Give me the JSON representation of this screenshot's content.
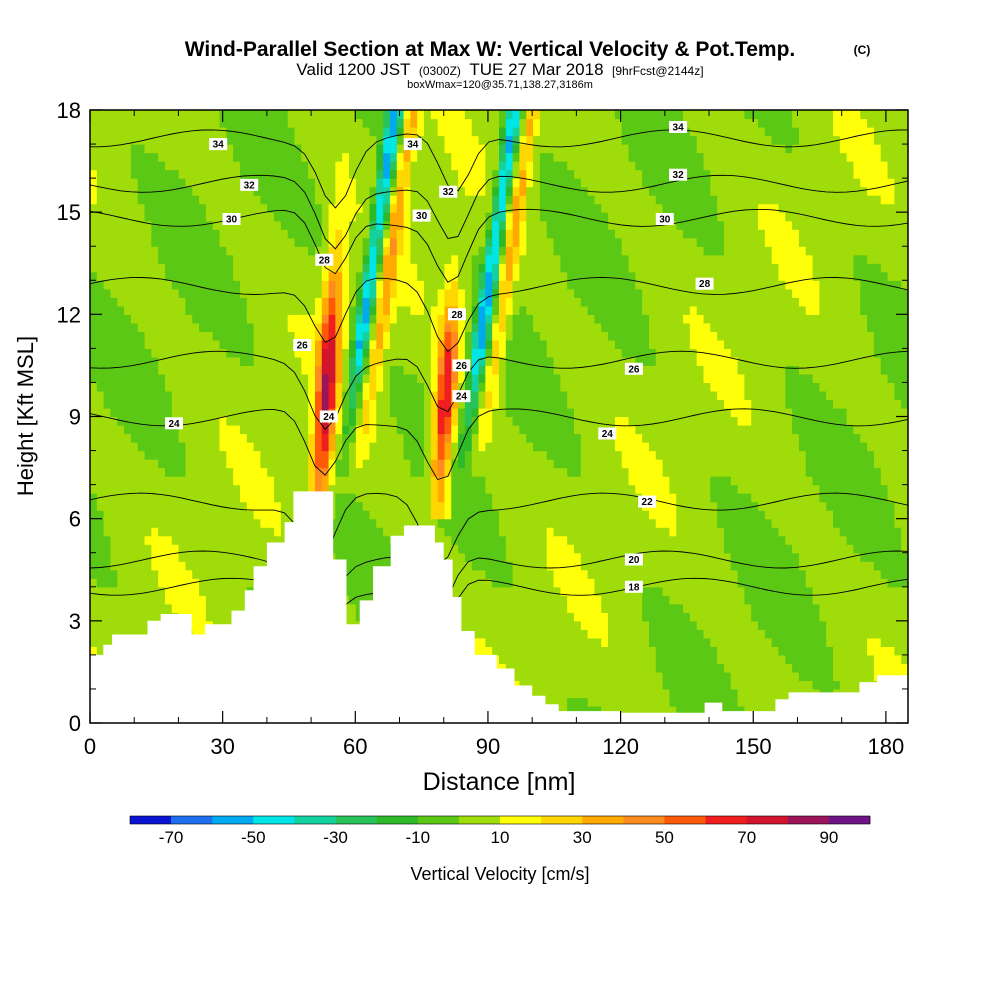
{
  "chart_data": {
    "type": "heatmap",
    "title": "Wind-Parallel Section at Max W: Vertical Velocity & Pot.Temp.",
    "copyright_mark": "(C)",
    "subtitle": {
      "valid": "Valid 1200 JST",
      "zulu": "(0300Z)",
      "date": "TUE 27 Mar 2018",
      "forecast": "[9hrFcst@2144z]"
    },
    "box_note": "boxWmax=120@35.71,138.27,3186m",
    "xlabel": "Distance [nm]",
    "ylabel": "Height [Kft MSL]",
    "xlim": [
      0,
      185
    ],
    "ylim": [
      0,
      18
    ],
    "x_ticks": [
      "0",
      "30",
      "60",
      "90",
      "120",
      "150",
      "180"
    ],
    "y_ticks": [
      "0",
      "3",
      "6",
      "9",
      "12",
      "15",
      "18"
    ],
    "x_tick_values": [
      0,
      30,
      60,
      90,
      120,
      150,
      180
    ],
    "y_tick_values": [
      0,
      3,
      6,
      9,
      12,
      15,
      18
    ],
    "colorbar": {
      "label": "Vertical Velocity [cm/s]",
      "tick_labels": [
        "-70",
        "-50",
        "-30",
        "-10",
        "10",
        "30",
        "50",
        "70",
        "90"
      ],
      "tick_values": [
        -70,
        -50,
        -30,
        -10,
        10,
        30,
        50,
        70,
        90
      ],
      "bounds": [
        -80,
        100
      ],
      "colors": [
        "#0a14d2",
        "#1e6ef0",
        "#00aaf0",
        "#00e6e6",
        "#14d2a0",
        "#28c35a",
        "#2db928",
        "#5ac814",
        "#a0dc0a",
        "#ffff0a",
        "#ffd700",
        "#ffaa00",
        "#ff8c1e",
        "#ff5a0a",
        "#f01e1e",
        "#d2142d",
        "#9b145a",
        "#6e1487"
      ]
    },
    "theta_contour_labels": [
      {
        "x": 29,
        "y": 17.0,
        "text": "34"
      },
      {
        "x": 73,
        "y": 17.0,
        "text": "34"
      },
      {
        "x": 133,
        "y": 17.5,
        "text": "34"
      },
      {
        "x": 36,
        "y": 15.8,
        "text": "32"
      },
      {
        "x": 81,
        "y": 15.6,
        "text": "32"
      },
      {
        "x": 133,
        "y": 16.1,
        "text": "32"
      },
      {
        "x": 32,
        "y": 14.8,
        "text": "30"
      },
      {
        "x": 75,
        "y": 14.9,
        "text": "30"
      },
      {
        "x": 130,
        "y": 14.8,
        "text": "30"
      },
      {
        "x": 53,
        "y": 13.6,
        "text": "28"
      },
      {
        "x": 83,
        "y": 12.0,
        "text": "28"
      },
      {
        "x": 139,
        "y": 12.9,
        "text": "28"
      },
      {
        "x": 48,
        "y": 11.1,
        "text": "26"
      },
      {
        "x": 84,
        "y": 10.5,
        "text": "26"
      },
      {
        "x": 123,
        "y": 10.4,
        "text": "26"
      },
      {
        "x": 19,
        "y": 8.8,
        "text": "24"
      },
      {
        "x": 54,
        "y": 9.0,
        "text": "24"
      },
      {
        "x": 84,
        "y": 9.6,
        "text": "24"
      },
      {
        "x": 117,
        "y": 8.5,
        "text": "24"
      },
      {
        "x": 126,
        "y": 6.5,
        "text": "22"
      },
      {
        "x": 123,
        "y": 4.8,
        "text": "20"
      },
      {
        "x": 123,
        "y": 4.0,
        "text": "18"
      }
    ],
    "updrafts": [
      {
        "x": 52,
        "y_bottom": 7,
        "y_top": 12.5,
        "peak": 75
      },
      {
        "x": 79,
        "y_bottom": 7,
        "y_top": 11.5,
        "peak": 70
      }
    ]
  }
}
